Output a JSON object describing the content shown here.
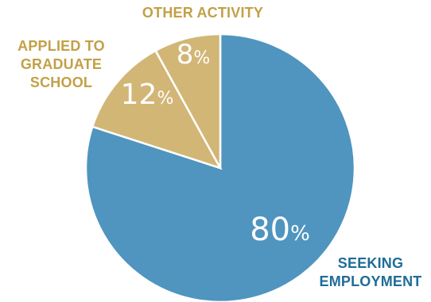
{
  "chart_data": {
    "type": "pie",
    "title": "",
    "start_angle_deg": 0,
    "direction": "clockwise",
    "slices": [
      {
        "value": 80,
        "value_text": "80",
        "unit": "%",
        "label_lines": [
          "SEEKING",
          "EMPLOYMENT"
        ],
        "fill": "#4f95bf",
        "label_color": "#1f6c97"
      },
      {
        "value": 12,
        "value_text": "12",
        "unit": "%",
        "label_lines": [
          "APPLIED TO",
          "GRADUATE",
          "SCHOOL"
        ],
        "fill": "#d2b676",
        "label_color": "#c2a047"
      },
      {
        "value": 8,
        "value_text": "8",
        "unit": "%",
        "label_lines": [
          "OTHER ACTIVITY"
        ],
        "fill": "#d2b676",
        "label_color": "#c2a047"
      }
    ],
    "stroke_color": "#ffffff"
  }
}
